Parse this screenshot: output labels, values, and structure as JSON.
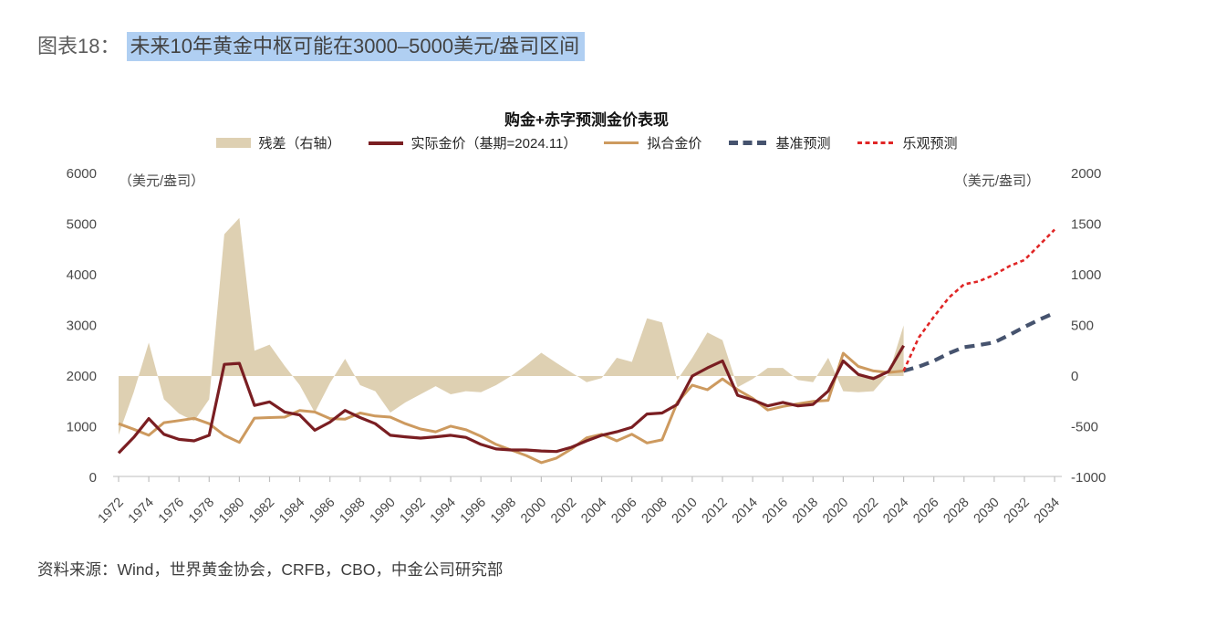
{
  "page": {
    "figure_label": "图表18：",
    "figure_title": "未来10年黄金中枢可能在3000–5000美元/盎司区间",
    "source": "资料来源：Wind，世界黄金协会，CRFB，CBO，中金公司研究部"
  },
  "chart_data": {
    "type": "line",
    "title": "购金+赤字预测金价表现",
    "legend_position": "top",
    "grid": false,
    "left_axis": {
      "unit": "（美元/盎司）",
      "range": [
        0,
        6000
      ],
      "ticks": [
        0,
        1000,
        2000,
        3000,
        4000,
        5000,
        6000
      ]
    },
    "right_axis": {
      "unit": "（美元/盎司）",
      "range": [
        -1000,
        2000
      ],
      "ticks": [
        -1000,
        -500,
        0,
        500,
        1000,
        1500,
        2000
      ]
    },
    "x_axis": {
      "range": [
        1972,
        2034
      ],
      "tick_years": [
        1972,
        1974,
        1976,
        1978,
        1980,
        1982,
        1984,
        1986,
        1988,
        1990,
        1992,
        1994,
        1996,
        1998,
        2000,
        2002,
        2004,
        2006,
        2008,
        2010,
        2012,
        2014,
        2016,
        2018,
        2020,
        2022,
        2024,
        2026,
        2028,
        2030,
        2032,
        2034
      ]
    },
    "legend": [
      {
        "label": "残差（右轴）",
        "color": "#ded0b2",
        "style": "area"
      },
      {
        "label": "实际金价（基期=2024.11）",
        "color": "#7a1e22",
        "style": "solid"
      },
      {
        "label": "拟合金价",
        "color": "#cd9a5f",
        "style": "solid"
      },
      {
        "label": "基准预测",
        "color": "#46536e",
        "style": "long-dash"
      },
      {
        "label": "乐观预测",
        "color": "#e02626",
        "style": "short-dash"
      }
    ],
    "series": {
      "actual": {
        "name": "实际金价（基期=2024.11）",
        "color": "#7a1e22",
        "axis": "left",
        "start_year": 1972,
        "values": [
          480,
          790,
          1160,
          850,
          750,
          720,
          830,
          2230,
          2250,
          1420,
          1490,
          1290,
          1230,
          930,
          1090,
          1320,
          1180,
          1060,
          830,
          800,
          775,
          800,
          830,
          790,
          650,
          560,
          540,
          540,
          520,
          510,
          595,
          720,
          830,
          900,
          990,
          1250,
          1270,
          1440,
          2000,
          2160,
          2300,
          1620,
          1530,
          1410,
          1480,
          1410,
          1440,
          1700,
          2300,
          2030,
          1950,
          2090,
          2600
        ]
      },
      "fitted": {
        "name": "拟合金价",
        "color": "#cd9a5f",
        "axis": "left",
        "start_year": 1972,
        "values": [
          1060,
          950,
          830,
          1080,
          1120,
          1165,
          1060,
          830,
          690,
          1170,
          1180,
          1190,
          1320,
          1290,
          1160,
          1150,
          1270,
          1210,
          1190,
          1060,
          955,
          900,
          1010,
          940,
          810,
          650,
          540,
          430,
          290,
          380,
          560,
          780,
          850,
          720,
          850,
          680,
          740,
          1480,
          1820,
          1730,
          1945,
          1730,
          1560,
          1330,
          1400,
          1450,
          1500,
          1520,
          2450,
          2190,
          2100,
          2070,
          2100
        ]
      },
      "residual": {
        "name": "残差（右轴）",
        "color": "#ded0b2",
        "axis": "right",
        "definition": "actual minus fitted, plotted as area on the right axis (0 on right axis aligns with 2000 on left axis)"
      },
      "baseline_forecast": {
        "name": "基准预测",
        "color": "#46536e",
        "axis": "left",
        "start_year": 2024,
        "values": [
          2100,
          2185,
          2300,
          2450,
          2570,
          2610,
          2665,
          2810,
          2970,
          3115,
          3245
        ]
      },
      "optimistic_forecast": {
        "name": "乐观预测",
        "color": "#e02626",
        "axis": "left",
        "start_year": 2024,
        "values": [
          2100,
          2760,
          3170,
          3550,
          3810,
          3870,
          4000,
          4170,
          4290,
          4590,
          4890
        ]
      }
    }
  }
}
